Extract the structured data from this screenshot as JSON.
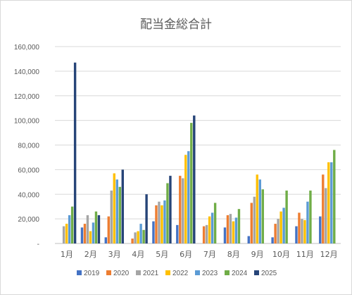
{
  "chart_data": {
    "type": "bar",
    "title": "配当金総合計",
    "categories": [
      "1月",
      "2月",
      "3月",
      "4月",
      "5月",
      "6月",
      "7月",
      "8月",
      "9月",
      "10月",
      "11月",
      "12月"
    ],
    "ylim": [
      0,
      160000
    ],
    "yticks": [
      0,
      20000,
      40000,
      60000,
      80000,
      100000,
      120000,
      140000,
      160000
    ],
    "ytick_labels": [
      "-",
      "20,000",
      "40,000",
      "60,000",
      "80,000",
      "100,000",
      "120,000",
      "140,000",
      "160,000"
    ],
    "grid": true,
    "legend_position": "bottom",
    "series": [
      {
        "name": "2019",
        "color": "#4472c4",
        "values": [
          0,
          13000,
          5000,
          0,
          18000,
          15000,
          0,
          13000,
          6000,
          5000,
          14000,
          22000
        ]
      },
      {
        "name": "2020",
        "color": "#ed7d31",
        "values": [
          0,
          16000,
          22000,
          4000,
          31000,
          55000,
          14000,
          23000,
          33000,
          16000,
          25000,
          56000
        ]
      },
      {
        "name": "2021",
        "color": "#a5a5a5",
        "values": [
          14000,
          23000,
          43000,
          9000,
          34000,
          53000,
          15000,
          24000,
          38000,
          20000,
          20000,
          45000
        ]
      },
      {
        "name": "2022",
        "color": "#ffc000",
        "values": [
          16000,
          10000,
          57000,
          10000,
          31000,
          72000,
          22000,
          18000,
          56000,
          26000,
          19000,
          66000
        ]
      },
      {
        "name": "2023",
        "color": "#5b9bd5",
        "values": [
          23000,
          17000,
          52000,
          16000,
          35000,
          75000,
          25000,
          21000,
          52000,
          29000,
          34000,
          66000
        ]
      },
      {
        "name": "2024",
        "color": "#70ad47",
        "values": [
          30000,
          26000,
          46000,
          11000,
          49000,
          98000,
          33000,
          28000,
          44000,
          43000,
          43000,
          76000
        ]
      },
      {
        "name": "2025",
        "color": "#264478",
        "values": [
          147000,
          23000,
          60000,
          40000,
          55000,
          104000,
          0,
          0,
          0,
          0,
          0,
          0
        ]
      }
    ]
  }
}
